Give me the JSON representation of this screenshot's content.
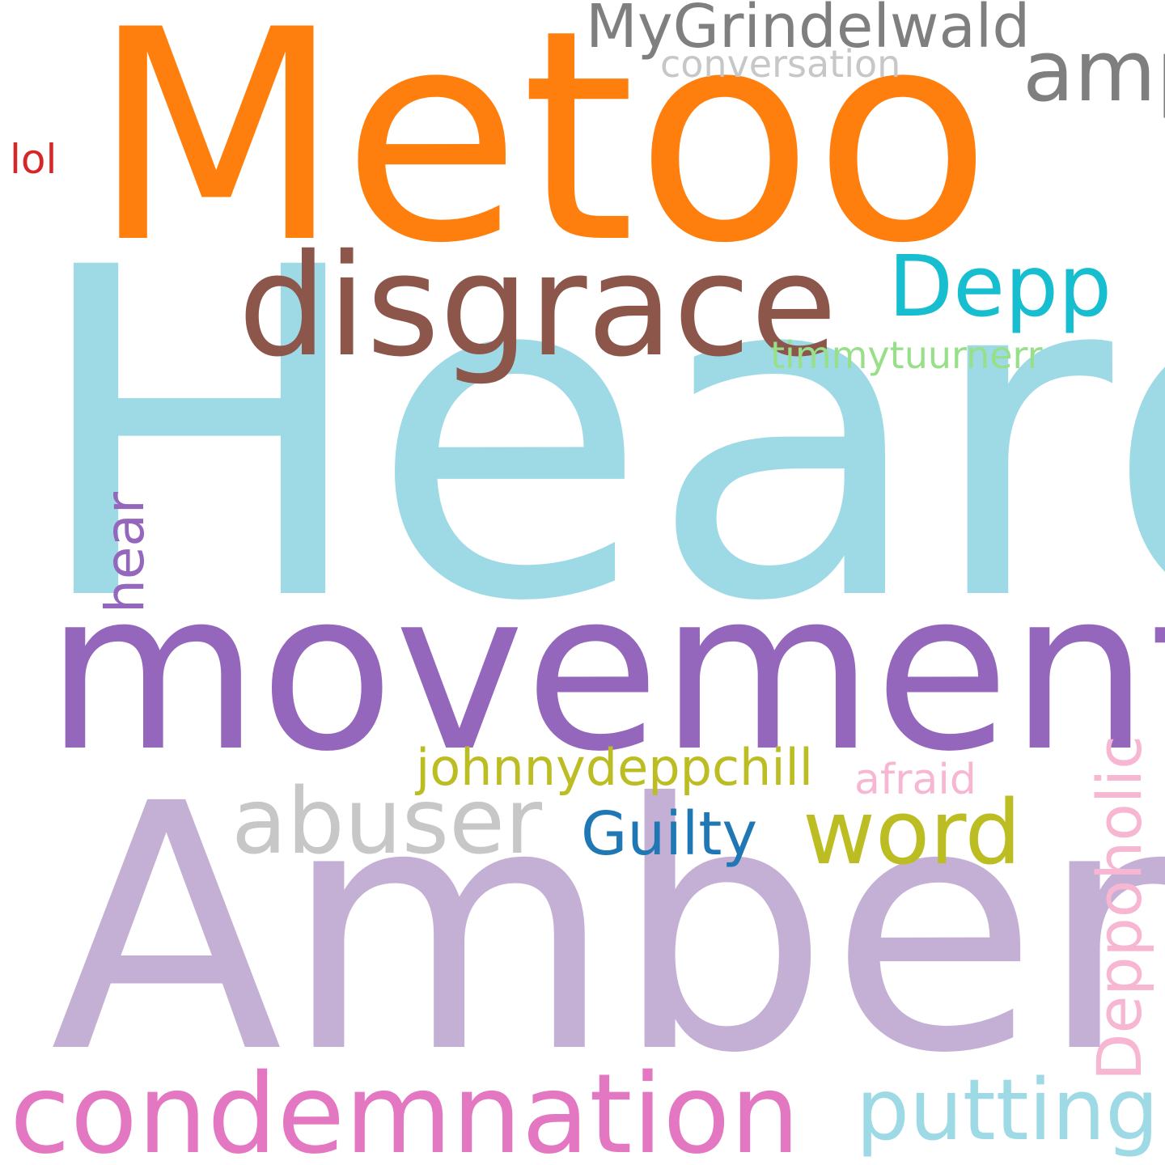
{
  "words": [
    {
      "text": "Heard",
      "color": "#9edae5"
    },
    {
      "text": "Amber",
      "color": "#c5b0d5"
    },
    {
      "text": "Metoo",
      "color": "#ff7f0e"
    },
    {
      "text": "movement",
      "color": "#9467bd"
    },
    {
      "text": "disgrace",
      "color": "#8c564b"
    },
    {
      "text": "condemnation",
      "color": "#e377c2"
    },
    {
      "text": "putting",
      "color": "#9edae5"
    },
    {
      "text": "abuser",
      "color": "#c7c7c7"
    },
    {
      "text": "word",
      "color": "#bcbd22"
    },
    {
      "text": "Depp",
      "color": "#17becf"
    },
    {
      "text": "amp",
      "color": "#7f7f7f"
    },
    {
      "text": "MyGrindelwald",
      "color": "#7f7f7f"
    },
    {
      "text": "Guilty",
      "color": "#1f77b4"
    },
    {
      "text": "Deppoholic",
      "color": "#f7b6d2"
    },
    {
      "text": "johnnydeppchill",
      "color": "#bcbd22"
    },
    {
      "text": "hear",
      "color": "#9467bd"
    },
    {
      "text": "timmytuurnerr",
      "color": "#98df8a"
    },
    {
      "text": "conversation",
      "color": "#c7c7c7"
    },
    {
      "text": "afraid",
      "color": "#f7b6d2"
    },
    {
      "text": "lol",
      "color": "#d62728"
    }
  ]
}
